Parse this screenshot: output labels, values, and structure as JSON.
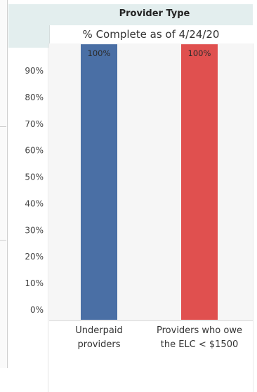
{
  "header": {
    "title": "Provider Type",
    "subtitle": "% Complete as of 4/24/20"
  },
  "chart_data": {
    "type": "bar",
    "categories": [
      "Underpaid providers",
      "Providers who owe the ELC < $1500"
    ],
    "category_lines": [
      [
        "Underpaid",
        "providers"
      ],
      [
        "Providers who owe",
        "the ELC < $1500"
      ]
    ],
    "values": [
      100,
      100
    ],
    "data_labels": [
      "100%",
      "100%"
    ],
    "bar_colors": [
      "#4a6fa5",
      "#e0504f"
    ],
    "ylim": [
      0,
      100
    ],
    "yticks": [
      0,
      10,
      20,
      30,
      40,
      50,
      60,
      70,
      80,
      90
    ],
    "ytick_labels": [
      "0%",
      "10%",
      "20%",
      "30%",
      "40%",
      "50%",
      "60%",
      "70%",
      "80%",
      "90%"
    ],
    "grid": false,
    "legend": "none"
  }
}
